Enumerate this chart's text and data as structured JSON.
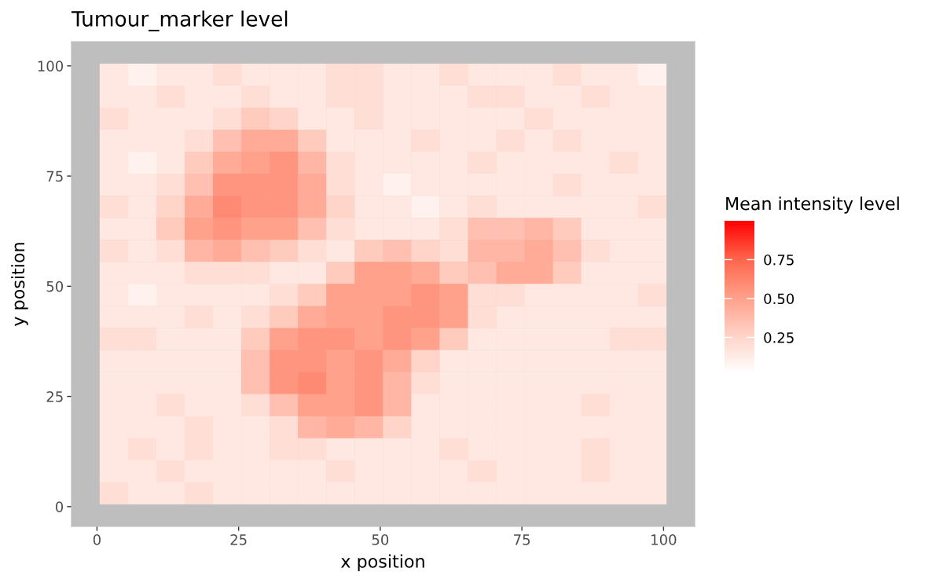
{
  "chart_data": {
    "type": "scatter",
    "title": "Tumour_marker level",
    "xlabel": "x position",
    "ylabel": "y position",
    "clabel": "Mean intensity level",
    "marker": "square",
    "xlim": [
      -4.5,
      105.5
    ],
    "ylim": [
      -4.5,
      105.5
    ],
    "xticks": [
      0,
      25,
      50,
      75,
      100
    ],
    "yticks": [
      0,
      25,
      50,
      75,
      100
    ],
    "clim": [
      0.02,
      1.0
    ],
    "cticks": [
      0.25,
      {
        "value": 0.5,
        "label": "0.50"
      },
      0.75
    ],
    "x": [
      3,
      8,
      13,
      18,
      23,
      28,
      33,
      38,
      43,
      48,
      53,
      58,
      63,
      68,
      73,
      78,
      83,
      88,
      93,
      98,
      3,
      8,
      13,
      18,
      23,
      28,
      33,
      38,
      43,
      48,
      53,
      58,
      63,
      68,
      73,
      78,
      83,
      88,
      93,
      98,
      3,
      8,
      13,
      18,
      23,
      28,
      33,
      38,
      43,
      48,
      53,
      58,
      63,
      68,
      73,
      78,
      83,
      88,
      93,
      98,
      3,
      8,
      13,
      18,
      23,
      28,
      33,
      38,
      43,
      48,
      53,
      58,
      63,
      68,
      73,
      78,
      83,
      88,
      93,
      98,
      3,
      8,
      13,
      18,
      23,
      28,
      33,
      38,
      43,
      48,
      53,
      58,
      63,
      68,
      73,
      78,
      83,
      88,
      93,
      98,
      3,
      8,
      13,
      18,
      23,
      28,
      33,
      38,
      43,
      48,
      53,
      58,
      63,
      68,
      73,
      78,
      83,
      88,
      93,
      98,
      3,
      8,
      13,
      18,
      23,
      28,
      33,
      38,
      43,
      48,
      53,
      58,
      63,
      68,
      73,
      78,
      83,
      88,
      93,
      98,
      3,
      8,
      13,
      18,
      23,
      28,
      33,
      38,
      43,
      48,
      53,
      58,
      63,
      68,
      73,
      78,
      83,
      88,
      93,
      98,
      3,
      8,
      13,
      18,
      23,
      28,
      33,
      38,
      43,
      48,
      53,
      58,
      63,
      68,
      73,
      78,
      83,
      88,
      93,
      98,
      3,
      8,
      13,
      18,
      23,
      28,
      33,
      38,
      43,
      48,
      53,
      58,
      63,
      68,
      73,
      78,
      83,
      88,
      93,
      98,
      3,
      8,
      13,
      18,
      23,
      28,
      33,
      38,
      43,
      48,
      53,
      58,
      63,
      68,
      73,
      78,
      83,
      88,
      93,
      98,
      3,
      8,
      13,
      18,
      23,
      28,
      33,
      38,
      43,
      48,
      53,
      58,
      63,
      68,
      73,
      78,
      83,
      88,
      93,
      98,
      3,
      8,
      13,
      18,
      23,
      28,
      33,
      38,
      43,
      48,
      53,
      58,
      63,
      68,
      73,
      78,
      83,
      88,
      93,
      98,
      3,
      8,
      13,
      18,
      23,
      28,
      33,
      38,
      43,
      48,
      53,
      58,
      63,
      68,
      73,
      78,
      83,
      88,
      93,
      98,
      3,
      8,
      13,
      18,
      23,
      28,
      33,
      38,
      43,
      48,
      53,
      58,
      63,
      68,
      73,
      78,
      83,
      88,
      93,
      98,
      3,
      8,
      13,
      18,
      23,
      28,
      33,
      38,
      43,
      48,
      53,
      58,
      63,
      68,
      73,
      78,
      83,
      88,
      93,
      98,
      3,
      8,
      13,
      18,
      23,
      28,
      33,
      38,
      43,
      48,
      53,
      58,
      63,
      68,
      73,
      78,
      83,
      88,
      93,
      98,
      3,
      8,
      13,
      18,
      23,
      28,
      33,
      38,
      43,
      48,
      53,
      58,
      63,
      68,
      73,
      78,
      83,
      88,
      93,
      98,
      3,
      8,
      13,
      18,
      23,
      28,
      33,
      38,
      43,
      48,
      53,
      58,
      63,
      68,
      73,
      78,
      83,
      88,
      93,
      98,
      3,
      8,
      13,
      18,
      23,
      28,
      33,
      38,
      43,
      48,
      53,
      58,
      63,
      68,
      73,
      78,
      83,
      88,
      93,
      98
    ],
    "values": [
      98,
      98,
      98,
      98,
      98,
      98,
      98,
      98,
      98,
      98,
      98,
      98,
      98,
      98,
      98,
      98,
      98,
      98,
      98,
      98,
      93,
      93,
      93,
      93,
      93,
      93,
      93,
      93,
      93,
      93,
      93,
      93,
      93,
      93,
      93,
      93,
      93,
      93,
      93,
      93,
      88,
      88,
      88,
      88,
      88,
      88,
      88,
      88,
      88,
      88,
      88,
      88,
      88,
      88,
      88,
      88,
      88,
      88,
      88,
      88,
      83,
      83,
      83,
      83,
      83,
      83,
      83,
      83,
      83,
      83,
      83,
      83,
      83,
      83,
      83,
      83,
      83,
      83,
      83,
      83,
      78,
      78,
      78,
      78,
      78,
      78,
      78,
      78,
      78,
      78,
      78,
      78,
      78,
      78,
      78,
      78,
      78,
      78,
      78,
      78,
      73,
      73,
      73,
      73,
      73,
      73,
      73,
      73,
      73,
      73,
      73,
      73,
      73,
      73,
      73,
      73,
      73,
      73,
      73,
      73,
      68,
      68,
      68,
      68,
      68,
      68,
      68,
      68,
      68,
      68,
      68,
      68,
      68,
      68,
      68,
      68,
      68,
      68,
      68,
      68,
      63,
      63,
      63,
      63,
      63,
      63,
      63,
      63,
      63,
      63,
      63,
      63,
      63,
      63,
      63,
      63,
      63,
      63,
      63,
      63,
      58,
      58,
      58,
      58,
      58,
      58,
      58,
      58,
      58,
      58,
      58,
      58,
      58,
      58,
      58,
      58,
      58,
      58,
      58,
      58,
      53,
      53,
      53,
      53,
      53,
      53,
      53,
      53,
      53,
      53,
      53,
      53,
      53,
      53,
      53,
      53,
      53,
      53,
      53,
      53,
      48,
      48,
      48,
      48,
      48,
      48,
      48,
      48,
      48,
      48,
      48,
      48,
      48,
      48,
      48,
      48,
      48,
      48,
      48,
      48,
      43,
      43,
      43,
      43,
      43,
      43,
      43,
      43,
      43,
      43,
      43,
      43,
      43,
      43,
      43,
      43,
      43,
      43,
      43,
      43,
      38,
      38,
      38,
      38,
      38,
      38,
      38,
      38,
      38,
      38,
      38,
      38,
      38,
      38,
      38,
      38,
      38,
      38,
      38,
      38,
      33,
      33,
      33,
      33,
      33,
      33,
      33,
      33,
      33,
      33,
      33,
      33,
      33,
      33,
      33,
      33,
      33,
      33,
      33,
      33,
      28,
      28,
      28,
      28,
      28,
      28,
      28,
      28,
      28,
      28,
      28,
      28,
      28,
      28,
      28,
      28,
      28,
      28,
      28,
      28,
      23,
      23,
      23,
      23,
      23,
      23,
      23,
      23,
      23,
      23,
      23,
      23,
      23,
      23,
      23,
      23,
      23,
      23,
      23,
      23,
      18,
      18,
      18,
      18,
      18,
      18,
      18,
      18,
      18,
      18,
      18,
      18,
      18,
      18,
      18,
      18,
      18,
      18,
      18,
      18,
      13,
      13,
      13,
      13,
      13,
      13,
      13,
      13,
      13,
      13,
      13,
      13,
      13,
      13,
      13,
      13,
      13,
      13,
      13,
      13,
      8,
      8,
      8,
      8,
      8,
      8,
      8,
      8,
      8,
      8,
      8,
      8,
      8,
      8,
      8,
      8,
      8,
      8,
      8,
      8,
      3,
      3,
      3,
      3,
      3,
      3,
      3,
      3,
      3,
      3,
      3,
      3,
      3,
      3,
      3,
      3,
      3,
      3,
      3,
      3
    ],
    "cvalues": [
      0.15,
      0.1,
      0.15,
      0.15,
      0.2,
      0.15,
      0.15,
      0.15,
      0.2,
      0.2,
      0.15,
      0.15,
      0.2,
      0.15,
      0.15,
      0.15,
      0.2,
      0.15,
      0.15,
      0.1,
      0.15,
      0.15,
      0.2,
      0.15,
      0.15,
      0.2,
      0.15,
      0.15,
      0.2,
      0.2,
      0.15,
      0.15,
      0.15,
      0.2,
      0.2,
      0.15,
      0.15,
      0.2,
      0.15,
      0.15,
      0.2,
      0.15,
      0.15,
      0.15,
      0.2,
      0.3,
      0.25,
      0.15,
      0.15,
      0.2,
      0.15,
      0.15,
      0.15,
      0.15,
      0.15,
      0.2,
      0.15,
      0.15,
      0.15,
      0.15,
      0.15,
      0.15,
      0.15,
      0.2,
      0.35,
      0.45,
      0.45,
      0.3,
      0.15,
      0.15,
      0.15,
      0.2,
      0.15,
      0.15,
      0.2,
      0.15,
      0.2,
      0.15,
      0.15,
      0.15,
      0.15,
      0.1,
      0.15,
      0.3,
      0.45,
      0.5,
      0.55,
      0.4,
      0.2,
      0.15,
      0.15,
      0.15,
      0.15,
      0.2,
      0.15,
      0.15,
      0.15,
      0.15,
      0.2,
      0.15,
      0.15,
      0.15,
      0.2,
      0.35,
      0.55,
      0.55,
      0.55,
      0.45,
      0.2,
      0.15,
      0.1,
      0.15,
      0.15,
      0.15,
      0.15,
      0.15,
      0.2,
      0.15,
      0.15,
      0.15,
      0.2,
      0.15,
      0.25,
      0.45,
      0.6,
      0.55,
      0.55,
      0.45,
      0.25,
      0.15,
      0.15,
      0.1,
      0.15,
      0.2,
      0.15,
      0.15,
      0.15,
      0.15,
      0.15,
      0.2,
      0.15,
      0.15,
      0.3,
      0.5,
      0.55,
      0.5,
      0.5,
      0.35,
      0.2,
      0.15,
      0.15,
      0.15,
      0.2,
      0.35,
      0.35,
      0.4,
      0.3,
      0.15,
      0.15,
      0.15,
      0.2,
      0.15,
      0.2,
      0.4,
      0.45,
      0.35,
      0.3,
      0.2,
      0.15,
      0.3,
      0.35,
      0.25,
      0.2,
      0.4,
      0.4,
      0.45,
      0.35,
      0.2,
      0.15,
      0.15,
      0.15,
      0.15,
      0.15,
      0.2,
      0.2,
      0.2,
      0.15,
      0.15,
      0.3,
      0.5,
      0.5,
      0.45,
      0.3,
      0.35,
      0.45,
      0.45,
      0.3,
      0.15,
      0.15,
      0.15,
      0.15,
      0.1,
      0.15,
      0.15,
      0.15,
      0.15,
      0.2,
      0.3,
      0.5,
      0.5,
      0.5,
      0.55,
      0.5,
      0.2,
      0.2,
      0.15,
      0.15,
      0.15,
      0.15,
      0.2,
      0.15,
      0.15,
      0.15,
      0.2,
      0.15,
      0.2,
      0.3,
      0.45,
      0.5,
      0.5,
      0.55,
      0.55,
      0.5,
      0.2,
      0.15,
      0.15,
      0.15,
      0.15,
      0.15,
      0.15,
      0.2,
      0.2,
      0.15,
      0.15,
      0.15,
      0.3,
      0.5,
      0.55,
      0.55,
      0.5,
      0.55,
      0.5,
      0.3,
      0.15,
      0.15,
      0.15,
      0.15,
      0.15,
      0.2,
      0.2,
      0.15,
      0.15,
      0.15,
      0.15,
      0.15,
      0.35,
      0.55,
      0.55,
      0.5,
      0.55,
      0.45,
      0.25,
      0.15,
      0.15,
      0.15,
      0.15,
      0.15,
      0.15,
      0.15,
      0.15,
      0.15,
      0.15,
      0.15,
      0.15,
      0.15,
      0.35,
      0.55,
      0.6,
      0.5,
      0.55,
      0.4,
      0.2,
      0.15,
      0.15,
      0.15,
      0.15,
      0.15,
      0.15,
      0.15,
      0.15,
      0.15,
      0.15,
      0.2,
      0.15,
      0.15,
      0.2,
      0.35,
      0.5,
      0.5,
      0.55,
      0.4,
      0.15,
      0.15,
      0.15,
      0.15,
      0.15,
      0.15,
      0.2,
      0.15,
      0.15,
      0.15,
      0.15,
      0.15,
      0.2,
      0.15,
      0.15,
      0.2,
      0.4,
      0.45,
      0.4,
      0.25,
      0.15,
      0.15,
      0.15,
      0.15,
      0.15,
      0.15,
      0.15,
      0.15,
      0.15,
      0.15,
      0.2,
      0.15,
      0.2,
      0.15,
      0.15,
      0.2,
      0.2,
      0.15,
      0.15,
      0.15,
      0.15,
      0.2,
      0.15,
      0.15,
      0.15,
      0.15,
      0.2,
      0.15,
      0.15,
      0.15,
      0.15,
      0.2,
      0.15,
      0.15,
      0.15,
      0.15,
      0.15,
      0.2,
      0.15,
      0.15,
      0.15,
      0.15,
      0.2,
      0.15,
      0.15,
      0.15,
      0.2,
      0.15,
      0.15,
      0.2,
      0.15,
      0.15,
      0.2,
      0.15,
      0.15,
      0.15,
      0.15,
      0.15,
      0.15,
      0.15,
      0.15,
      0.15,
      0.15,
      0.15,
      0.15,
      0.15,
      0.15,
      0.15,
      0.15
    ]
  }
}
